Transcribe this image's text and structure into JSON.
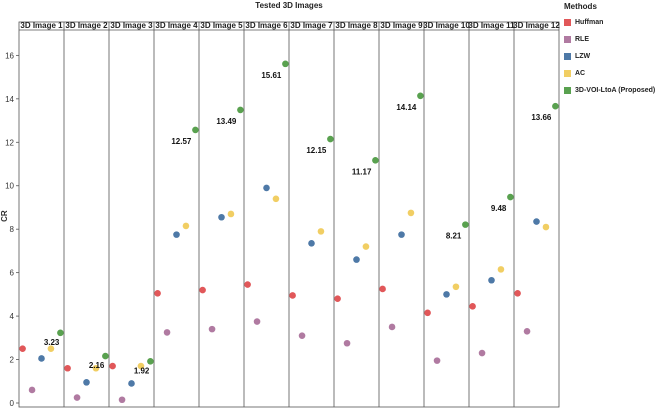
{
  "chart_data": {
    "type": "scatter",
    "title": "Tested 3D Images",
    "ylabel": "CR",
    "xlabel": "",
    "ylim": [
      0,
      16.8
    ],
    "yticks": [
      0,
      2,
      4,
      6,
      8,
      10,
      12,
      14,
      16
    ],
    "grid": false,
    "legend_position": "right",
    "legend_title": "Methods",
    "categories": [
      "3D Image 1",
      "3D Image 2",
      "3D Image 3",
      "3D Image 4",
      "3D Image 5",
      "3D Image 6",
      "3D Image 7",
      "3D Image 8",
      "3D Image 9",
      "3D Image 10",
      "3D Image 11",
      "3D Image 12"
    ],
    "series": [
      {
        "name": "Huffman",
        "color": "#e15759",
        "values": [
          2.5,
          1.6,
          1.7,
          5.05,
          5.2,
          5.45,
          4.95,
          4.8,
          5.25,
          4.15,
          4.45,
          5.05
        ]
      },
      {
        "name": "RLE",
        "color": "#b07aa1",
        "values": [
          0.6,
          0.25,
          0.15,
          3.25,
          3.4,
          3.75,
          3.1,
          2.75,
          3.5,
          1.95,
          2.3,
          3.3
        ]
      },
      {
        "name": "LZW",
        "color": "#4e79a7",
        "values": [
          2.05,
          0.95,
          0.9,
          7.75,
          8.55,
          9.9,
          7.35,
          6.6,
          7.75,
          5.0,
          5.65,
          8.35
        ]
      },
      {
        "name": "AC",
        "color": "#f1ce63",
        "values": [
          2.5,
          1.6,
          1.7,
          8.15,
          8.7,
          9.4,
          7.9,
          7.2,
          8.75,
          5.35,
          6.15,
          8.1
        ]
      },
      {
        "name": "3D-VOI-LtoA (Proposed)",
        "color": "#59a14f",
        "values": [
          3.23,
          2.16,
          1.92,
          12.57,
          13.49,
          15.61,
          12.15,
          11.17,
          14.14,
          8.21,
          9.48,
          13.66
        ]
      }
    ],
    "data_labels": [
      "3.23",
      "2.16",
      "1.92",
      "12.57",
      "13.49",
      "15.61",
      "12.15",
      "11.17",
      "14.14",
      "8.21",
      "9.48",
      "13.66"
    ]
  }
}
